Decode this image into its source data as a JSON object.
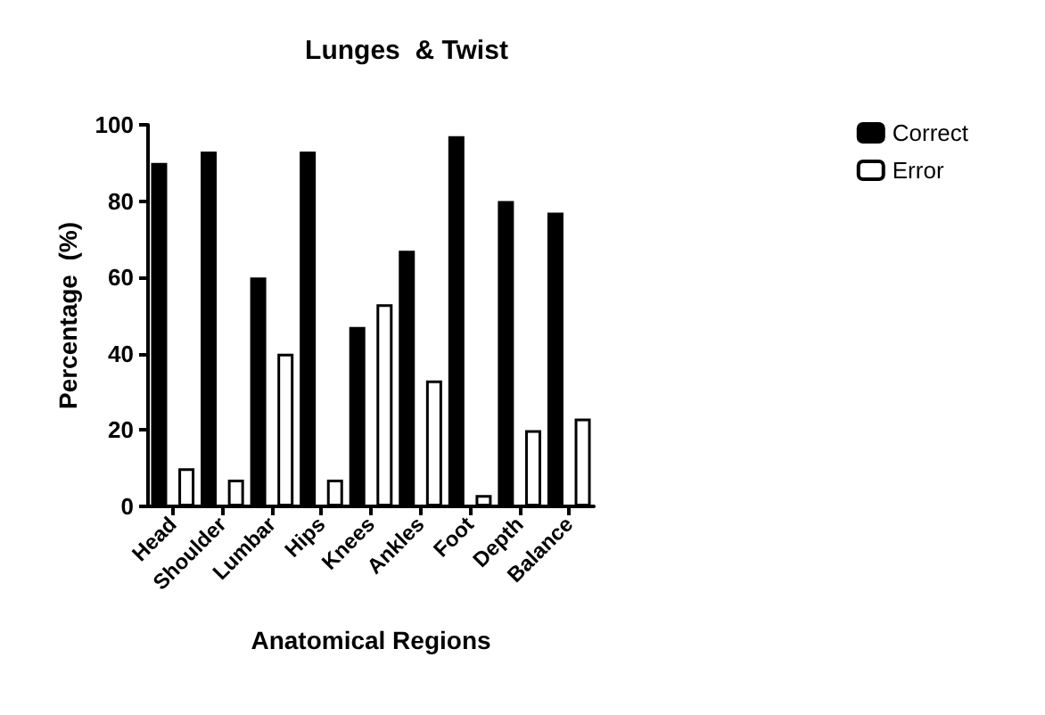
{
  "chart_data": {
    "type": "bar",
    "title": "Lunges  & Twist",
    "xlabel": "Anatomical Regions",
    "ylabel": "Percentage  (%)",
    "categories": [
      "Head",
      "Shoulder",
      "Lumbar",
      "Hips",
      "Knees",
      "Ankles",
      "Foot",
      "Depth",
      "Balance"
    ],
    "series": [
      {
        "name": "Correct",
        "color": "#000000",
        "values": [
          90,
          93,
          60,
          93,
          47,
          67,
          97,
          80,
          77
        ]
      },
      {
        "name": "Error",
        "color": "#ffffff",
        "values": [
          10,
          7,
          40,
          7,
          53,
          33,
          3,
          20,
          23
        ]
      }
    ],
    "ylim": [
      0,
      100
    ],
    "yticks": [
      0,
      20,
      40,
      60,
      80,
      100
    ],
    "grid": false,
    "legend": "top right"
  }
}
